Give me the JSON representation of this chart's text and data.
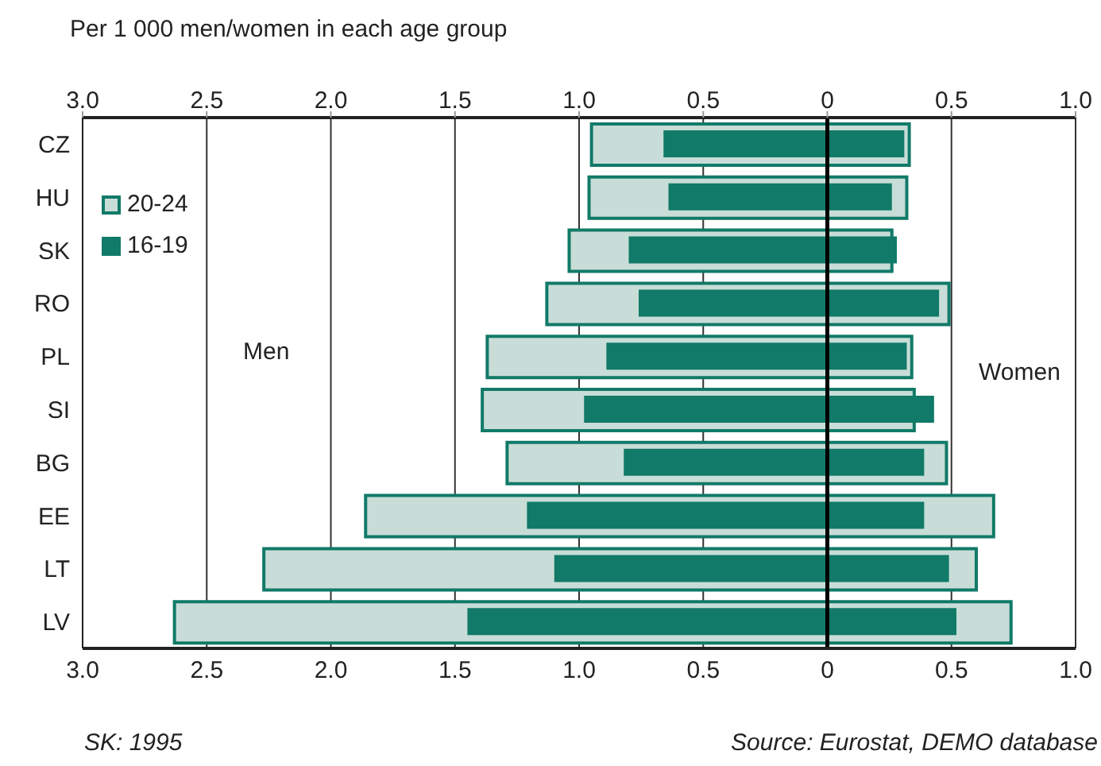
{
  "chart_data": {
    "type": "bar",
    "orientation": "horizontal",
    "title": "Per 1 000 men/women in each age group",
    "categories": [
      "CZ",
      "HU",
      "SK",
      "RO",
      "PL",
      "SI",
      "BG",
      "EE",
      "LT",
      "LV"
    ],
    "series": [
      {
        "name": "20-24",
        "color": "#c8ddd7",
        "base": [
          -0.95,
          -0.96,
          -1.04,
          -1.13,
          -1.37,
          -1.39,
          -1.29,
          -1.86,
          -2.27,
          -2.63
        ],
        "values": [
          1.28,
          1.28,
          1.3,
          1.62,
          1.71,
          1.74,
          1.77,
          2.53,
          2.87,
          3.37
        ]
      },
      {
        "name": "16-19",
        "color": "#117a68",
        "base": [
          -0.66,
          -0.64,
          -0.8,
          -0.76,
          -0.89,
          -0.98,
          -0.82,
          -1.21,
          -1.1,
          -1.45
        ],
        "values": [
          0.97,
          0.9,
          1.08,
          1.21,
          1.21,
          1.41,
          1.21,
          1.6,
          1.59,
          1.97
        ]
      }
    ],
    "xlim": [
      -3,
      1
    ],
    "xticks": [
      {
        "value": -3,
        "label": "3.0"
      },
      {
        "value": -2.5,
        "label": "2.5"
      },
      {
        "value": -2,
        "label": "2.0"
      },
      {
        "value": -1.5,
        "label": "1.5"
      },
      {
        "value": -1,
        "label": "1.0"
      },
      {
        "value": -0.5,
        "label": "0.5"
      },
      0,
      {
        "value": 0.5,
        "label": "0.5"
      },
      {
        "value": 1,
        "label": "1.0"
      }
    ],
    "x2lim": [
      -3,
      1
    ],
    "x2ticks": [
      {
        "value": -3,
        "label": "3.0"
      },
      {
        "value": -2.5,
        "label": "2.5"
      },
      {
        "value": -2,
        "label": "2.0"
      },
      {
        "value": -1.5,
        "label": "1.5"
      },
      {
        "value": -1,
        "label": "1.0"
      },
      {
        "value": -0.5,
        "label": "0.5"
      },
      0,
      {
        "value": 0.5,
        "label": "0.5"
      },
      {
        "value": 1,
        "label": "1.0"
      }
    ],
    "ref_lines": [
      {
        "axis": "x",
        "value": 0,
        "color": "#000000"
      }
    ],
    "grid": "x",
    "legend": "top left",
    "annotations": [
      "Men",
      "Women",
      "SK: 1995",
      "Source: Eurostat, DEMO database"
    ]
  }
}
